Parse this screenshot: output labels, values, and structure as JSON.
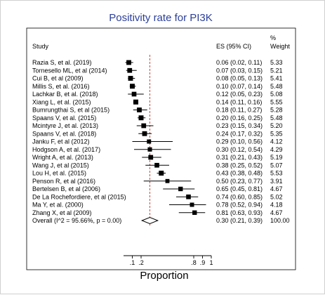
{
  "chart_data": {
    "type": "forest",
    "title": "Positivity rate for PI3K",
    "xlabel": "Proportion",
    "headers": {
      "study": "Study",
      "es": "ES (95% CI)",
      "weight_line1": "%",
      "weight_line2": "Weight"
    },
    "xlim": [
      0,
      1
    ],
    "xticks": [
      {
        "value": 0.1,
        "label": ".1"
      },
      {
        "value": 0.2,
        "label": ".2"
      },
      {
        "value": 0.8,
        "label": ".8"
      },
      {
        "value": 0.9,
        "label": ".9"
      },
      {
        "value": 1.0,
        "label": "1"
      }
    ],
    "reference_line": 0.3,
    "studies": [
      {
        "label": "Razia S, et al. (2019)",
        "es": 0.06,
        "lo": 0.02,
        "hi": 0.11,
        "weight": 5.33,
        "es_text": "0.06 (0.02, 0.11)",
        "weight_text": "5.33"
      },
      {
        "label": "Tornesello ML, et al (2014)",
        "es": 0.07,
        "lo": 0.03,
        "hi": 0.15,
        "weight": 5.21,
        "es_text": "0.07 (0.03, 0.15)",
        "weight_text": "5.21"
      },
      {
        "label": "Cui B, et al (2009)",
        "es": 0.08,
        "lo": 0.05,
        "hi": 0.13,
        "weight": 5.41,
        "es_text": "0.08 (0.05, 0.13)",
        "weight_text": "5.41"
      },
      {
        "label": "Millis S, et al. (2016)",
        "es": 0.1,
        "lo": 0.07,
        "hi": 0.14,
        "weight": 5.48,
        "es_text": "0.10 (0.07, 0.14)",
        "weight_text": "5.48"
      },
      {
        "label": "Lachkar B, et al. (2018)",
        "es": 0.12,
        "lo": 0.05,
        "hi": 0.23,
        "weight": 5.08,
        "es_text": "0.12 (0.05, 0.23)",
        "weight_text": "5.08"
      },
      {
        "label": "Xiang L, et al. (2015)",
        "es": 0.14,
        "lo": 0.11,
        "hi": 0.16,
        "weight": 5.55,
        "es_text": "0.14 (0.11, 0.16)",
        "weight_text": "5.55"
      },
      {
        "label": "Bumrungthai S, et al (2015)",
        "es": 0.18,
        "lo": 0.11,
        "hi": 0.27,
        "weight": 5.28,
        "es_text": "0.18 (0.11, 0.27)",
        "weight_text": "5.28"
      },
      {
        "label": "Spaans V, et al. (2015)",
        "es": 0.2,
        "lo": 0.16,
        "hi": 0.25,
        "weight": 5.48,
        "es_text": "0.20 (0.16, 0.25)",
        "weight_text": "5.48"
      },
      {
        "label": "Mcintyre J, et al. (2013)",
        "es": 0.23,
        "lo": 0.15,
        "hi": 0.34,
        "weight": 5.2,
        "es_text": "0.23 (0.15, 0.34)",
        "weight_text": "5.20"
      },
      {
        "label": "Spaans V, et al. (2018)",
        "es": 0.24,
        "lo": 0.17,
        "hi": 0.32,
        "weight": 5.35,
        "es_text": "0.24 (0.17, 0.32)",
        "weight_text": "5.35"
      },
      {
        "label": "Janku F, et al (2012)",
        "es": 0.29,
        "lo": 0.1,
        "hi": 0.56,
        "weight": 4.12,
        "es_text": "0.29 (0.10, 0.56)",
        "weight_text": "4.12"
      },
      {
        "label": "Hodgson A, et al. (2017)",
        "es": 0.3,
        "lo": 0.12,
        "hi": 0.54,
        "weight": 4.29,
        "es_text": "0.30 (0.12, 0.54)",
        "weight_text": "4.29"
      },
      {
        "label": "Wright A, et al. (2013)",
        "es": 0.31,
        "lo": 0.21,
        "hi": 0.43,
        "weight": 5.19,
        "es_text": "0.31 (0.21, 0.43)",
        "weight_text": "5.19"
      },
      {
        "label": "Wang J, et al (2015)",
        "es": 0.38,
        "lo": 0.25,
        "hi": 0.52,
        "weight": 5.07,
        "es_text": "0.38 (0.25, 0.52)",
        "weight_text": "5.07"
      },
      {
        "label": "Lou H, et al. (2015)",
        "es": 0.43,
        "lo": 0.38,
        "hi": 0.48,
        "weight": 5.53,
        "es_text": "0.43 (0.38, 0.48)",
        "weight_text": "5.53"
      },
      {
        "label": "Penson R, et al (2016)",
        "es": 0.5,
        "lo": 0.23,
        "hi": 0.77,
        "weight": 3.91,
        "es_text": "0.50 (0.23, 0.77)",
        "weight_text": "3.91"
      },
      {
        "label": "Bertelsen B, et al (2006)",
        "es": 0.65,
        "lo": 0.45,
        "hi": 0.81,
        "weight": 4.67,
        "es_text": "0.65 (0.45, 0.81)",
        "weight_text": "4.67"
      },
      {
        "label": "De La Rochefordiere, et al (2015)",
        "es": 0.74,
        "lo": 0.6,
        "hi": 0.85,
        "weight": 5.02,
        "es_text": "0.74 (0.60, 0.85)",
        "weight_text": "5.02"
      },
      {
        "label": "Ma Y, et al. (2000)",
        "es": 0.78,
        "lo": 0.52,
        "hi": 0.94,
        "weight": 4.18,
        "es_text": "0.78 (0.52, 0.94)",
        "weight_text": "4.18"
      },
      {
        "label": "Zhang X, et al (2009)",
        "es": 0.81,
        "lo": 0.63,
        "hi": 0.93,
        "weight": 4.67,
        "es_text": "0.81 (0.63, 0.93)",
        "weight_text": "4.67"
      }
    ],
    "overall": {
      "label": "Overall  (I^2 = 95.66%, p = 0.00)",
      "es": 0.3,
      "lo": 0.21,
      "hi": 0.39,
      "es_text": "0.30 (0.21, 0.39)",
      "weight_text": "100.00"
    },
    "colors": {
      "title": "#2b3f9a",
      "reference_line": "#c0392b",
      "marks": "#000000"
    }
  }
}
